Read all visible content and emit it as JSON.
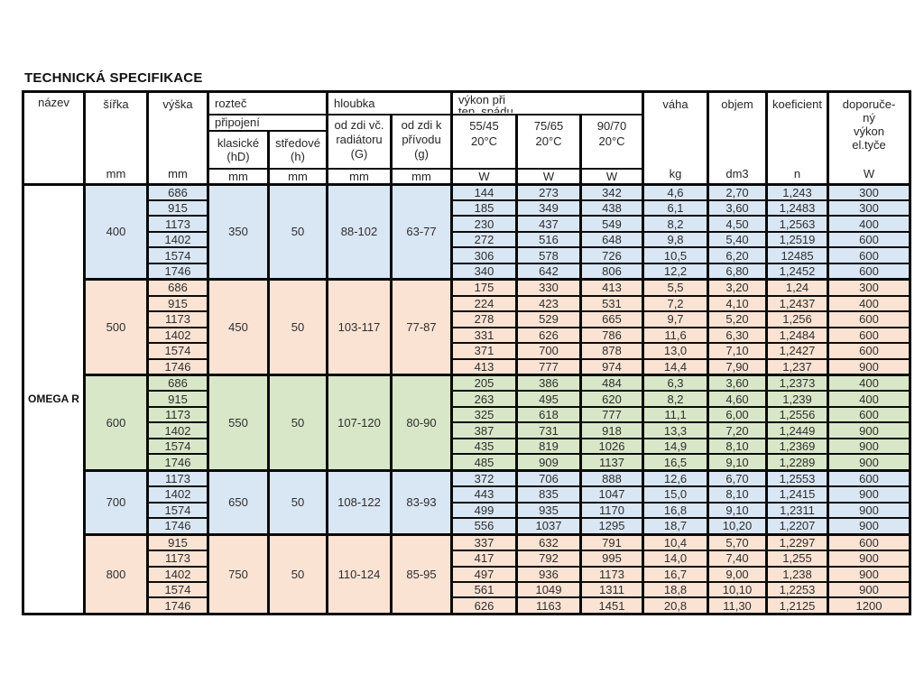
{
  "title": "TECHNICKÁ SPECIFIKACE",
  "header": {
    "nazev": "název",
    "sirka": "šířka",
    "vyska": "výška",
    "roztec": "rozteč",
    "pripojeni": "připojení",
    "klasicke": "klasické\n(hD)",
    "stredove": "středové\n(h)",
    "hloubka": "hloubka",
    "od_zdi_radiator": "od zdi  vč.\nradiátoru\n(G)",
    "od_zdi_privod": "od zdi  k\npřívodu\n(g)",
    "vykon": "výkon při\ntep. spádu",
    "spad1": "55/45\n20°C",
    "spad2": "75/65\n20°C",
    "spad3": "90/70\n20°C",
    "vaha": "váha",
    "objem": "objem",
    "koeficient": "koeficient",
    "doporuceny": "doporuče-\nný\nvýkon\nel.tyče",
    "unit_mm": "mm",
    "unit_w": "W",
    "unit_kg": "kg",
    "unit_dm3": "dm3",
    "unit_n": "n"
  },
  "product_name": "OMEGA R",
  "colors": {
    "blue": "#d9e6f4",
    "peach": "#fbe3d4",
    "green": "#d8e7c8"
  },
  "groups": [
    {
      "sirka": "400",
      "color": "blue",
      "klasicke": "350",
      "stredove": "50",
      "hloubka_g": "88-102",
      "hloubka_g2": "63-77",
      "rows": [
        [
          "686",
          "144",
          "273",
          "342",
          "4,6",
          "2,70",
          "1,243",
          "300"
        ],
        [
          "915",
          "185",
          "349",
          "438",
          "6,1",
          "3,60",
          "1,2483",
          "300"
        ],
        [
          "1173",
          "230",
          "437",
          "549",
          "8,2",
          "4,50",
          "1,2563",
          "400"
        ],
        [
          "1402",
          "272",
          "516",
          "648",
          "9,8",
          "5,40",
          "1,2519",
          "600"
        ],
        [
          "1574",
          "306",
          "578",
          "726",
          "10,5",
          "6,20",
          "12485",
          "600"
        ],
        [
          "1746",
          "340",
          "642",
          "806",
          "12,2",
          "6,80",
          "1,2452",
          "600"
        ]
      ]
    },
    {
      "sirka": "500",
      "color": "peach",
      "klasicke": "450",
      "stredove": "50",
      "hloubka_g": "103-117",
      "hloubka_g2": "77-87",
      "rows": [
        [
          "686",
          "175",
          "330",
          "413",
          "5,5",
          "3,20",
          "1,24",
          "300"
        ],
        [
          "915",
          "224",
          "423",
          "531",
          "7,2",
          "4,10",
          "1,2437",
          "400"
        ],
        [
          "1173",
          "278",
          "529",
          "665",
          "9,7",
          "5,20",
          "1,256",
          "600"
        ],
        [
          "1402",
          "331",
          "626",
          "786",
          "11,6",
          "6,30",
          "1,2484",
          "600"
        ],
        [
          "1574",
          "371",
          "700",
          "878",
          "13,0",
          "7,10",
          "1,2427",
          "600"
        ],
        [
          "1746",
          "413",
          "777",
          "974",
          "14,4",
          "7,90",
          "1,237",
          "900"
        ]
      ]
    },
    {
      "sirka": "600",
      "color": "green",
      "klasicke": "550",
      "stredove": "50",
      "hloubka_g": "107-120",
      "hloubka_g2": "80-90",
      "rows": [
        [
          "686",
          "205",
          "386",
          "484",
          "6,3",
          "3,60",
          "1,2373",
          "400"
        ],
        [
          "915",
          "263",
          "495",
          "620",
          "8,2",
          "4,60",
          "1,239",
          "400"
        ],
        [
          "1173",
          "325",
          "618",
          "777",
          "11,1",
          "6,00",
          "1,2556",
          "600"
        ],
        [
          "1402",
          "387",
          "731",
          "918",
          "13,3",
          "7,20",
          "1,2449",
          "900"
        ],
        [
          "1574",
          "435",
          "819",
          "1026",
          "14,9",
          "8,10",
          "1,2369",
          "900"
        ],
        [
          "1746",
          "485",
          "909",
          "1137",
          "16,5",
          "9,10",
          "1,2289",
          "900"
        ]
      ]
    },
    {
      "sirka": "700",
      "color": "blue",
      "klasicke": "650",
      "stredove": "50",
      "hloubka_g": "108-122",
      "hloubka_g2": "83-93",
      "rows": [
        [
          "1173",
          "372",
          "706",
          "888",
          "12,6",
          "6,70",
          "1,2553",
          "600"
        ],
        [
          "1402",
          "443",
          "835",
          "1047",
          "15,0",
          "8,10",
          "1,2415",
          "900"
        ],
        [
          "1574",
          "499",
          "935",
          "1170",
          "16,8",
          "9,10",
          "1,2311",
          "900"
        ],
        [
          "1746",
          "556",
          "1037",
          "1295",
          "18,7",
          "10,20",
          "1,2207",
          "900"
        ]
      ]
    },
    {
      "sirka": "800",
      "color": "peach",
      "klasicke": "750",
      "stredove": "50",
      "hloubka_g": "110-124",
      "hloubka_g2": "85-95",
      "rows": [
        [
          "915",
          "337",
          "632",
          "791",
          "10,4",
          "5,70",
          "1,2297",
          "600"
        ],
        [
          "1173",
          "417",
          "792",
          "995",
          "14,0",
          "7,40",
          "1,255",
          "900"
        ],
        [
          "1402",
          "497",
          "936",
          "1173",
          "16,7",
          "9,00",
          "1,238",
          "900"
        ],
        [
          "1574",
          "561",
          "1049",
          "1311",
          "18,8",
          "10,10",
          "1,2253",
          "900"
        ],
        [
          "1746",
          "626",
          "1163",
          "1451",
          "20,8",
          "11,30",
          "1,2125",
          "1200"
        ]
      ]
    }
  ]
}
